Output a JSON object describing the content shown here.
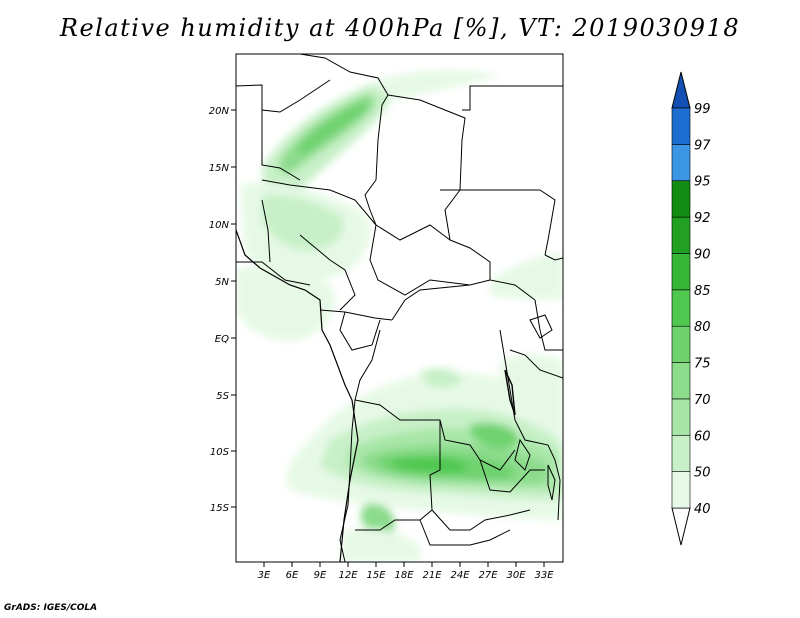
{
  "title": "Relative humidity at 400hPa [%], VT: 2019030918",
  "footer": "GrADS: IGES/COLA",
  "map": {
    "lon_range": [
      0,
      35
    ],
    "lat_range": [
      -20,
      24
    ],
    "lon_ticks": [
      "3E",
      "6E",
      "9E",
      "12E",
      "15E",
      "18E",
      "21E",
      "24E",
      "27E",
      "30E",
      "33E"
    ],
    "lat_ticks": [
      "20N",
      "15N",
      "10N",
      "5N",
      "EQ",
      "5S",
      "10S",
      "15S"
    ]
  },
  "colorbar": {
    "levels": [
      "40",
      "50",
      "60",
      "70",
      "75",
      "80",
      "85",
      "90",
      "92",
      "95",
      "97",
      "99"
    ],
    "colors": [
      "#ffffff",
      "#e6f9e6",
      "#c8f0c8",
      "#a8e6a8",
      "#8cdc8c",
      "#6ed26e",
      "#50c850",
      "#36b836",
      "#22a022",
      "#148c14",
      "#3c96e6",
      "#1e6ed2",
      "#1450b4"
    ]
  }
}
